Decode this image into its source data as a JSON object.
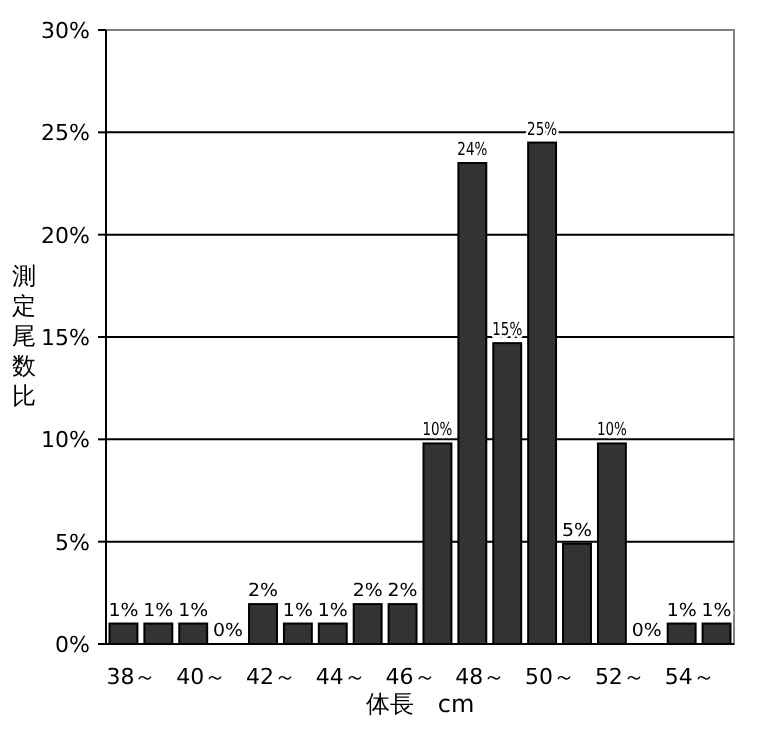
{
  "chart_data": {
    "type": "bar",
    "categories": [
      "38～",
      null,
      "40～",
      null,
      "42～",
      null,
      "44～",
      null,
      "46～",
      null,
      "48～",
      null,
      "50～",
      null,
      "52～",
      null,
      "54～",
      null
    ],
    "values": [
      1.0,
      1.0,
      1.0,
      0,
      1.95,
      1.0,
      1.0,
      1.95,
      1.95,
      9.8,
      23.5,
      14.7,
      24.5,
      4.9,
      9.8,
      0,
      1.0,
      1.0
    ],
    "value_labels": [
      "1%",
      "1%",
      "1%",
      "0%",
      "2%",
      "1%",
      "1%",
      "2%",
      "2%",
      "10%",
      "24%",
      "15%",
      "25%",
      "5%",
      "10%",
      "0%",
      "1%",
      "1%"
    ],
    "color": "#333333",
    "ylim": [
      0,
      30
    ],
    "yticks": [
      {
        "value": 0,
        "label": "0%"
      },
      {
        "value": 5,
        "label": "5%"
      },
      {
        "value": 10,
        "label": "10%"
      },
      {
        "value": 15,
        "label": "15%"
      },
      {
        "value": 20,
        "label": "20%"
      },
      {
        "value": 25,
        "label": "25%"
      },
      {
        "value": 30,
        "label": "30%"
      }
    ],
    "grid": "y",
    "xlabel": "体長　cm",
    "ylabel": "測定尾数比"
  }
}
